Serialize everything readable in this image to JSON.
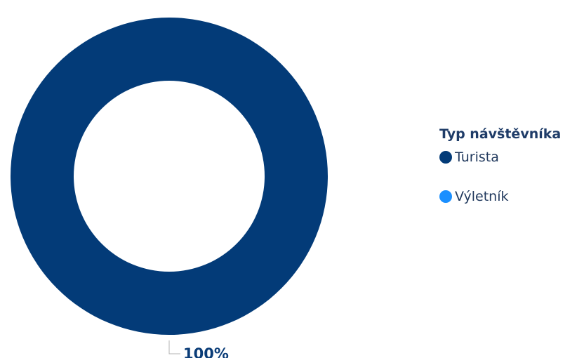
{
  "chart_data": {
    "type": "pie",
    "title": "",
    "legend": {
      "title": "Typ návštěvníka",
      "placement": "right"
    },
    "series": [
      {
        "name": "Turista",
        "value": 100,
        "label": "100%",
        "color": "#033b78"
      },
      {
        "name": "Výletník",
        "value": 0,
        "label": "",
        "color": "#1a8fff"
      }
    ],
    "donut": true
  }
}
